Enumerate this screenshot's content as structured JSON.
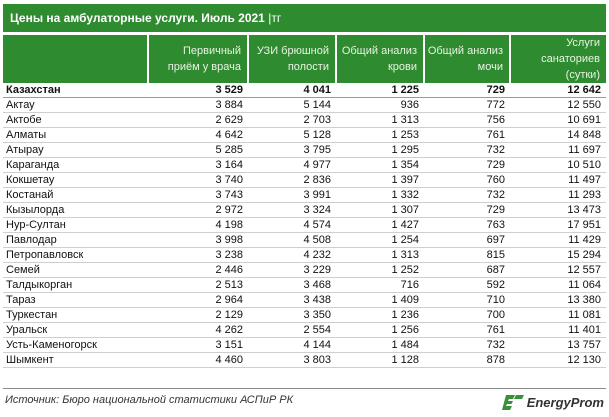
{
  "title": {
    "text": "Цены на амбулаторные услуги. Июль 2021",
    "unit": "|тг"
  },
  "table": {
    "columns": [
      "",
      "Первичный приём у врача",
      "УЗИ брюшной полости",
      "Общий анализ крови",
      "Общий анализ мочи",
      "Услуги санаториев (сутки)"
    ],
    "total": [
      "Казахстан",
      "3 529",
      "4 041",
      "1 225",
      "729",
      "12 642"
    ],
    "rows": [
      [
        "Актау",
        "3 884",
        "5 144",
        "936",
        "772",
        "12 550"
      ],
      [
        "Актобе",
        "2 629",
        "2 703",
        "1 313",
        "756",
        "10 691"
      ],
      [
        "Алматы",
        "4 642",
        "5 128",
        "1 253",
        "761",
        "14 848"
      ],
      [
        "Атырау",
        "5 285",
        "3 795",
        "1 295",
        "732",
        "11 697"
      ],
      [
        "Караганда",
        "3 164",
        "4 977",
        "1 354",
        "729",
        "10 510"
      ],
      [
        "Кокшетау",
        "3 740",
        "2 836",
        "1 397",
        "760",
        "11 497"
      ],
      [
        "Костанай",
        "3 743",
        "3 991",
        "1 332",
        "732",
        "11 293"
      ],
      [
        "Кызылорда",
        "2 972",
        "3 324",
        "1 307",
        "729",
        "13 473"
      ],
      [
        "Нур-Султан",
        "4 198",
        "4 574",
        "1 427",
        "763",
        "17 951"
      ],
      [
        "Павлодар",
        "3 998",
        "4 508",
        "1 254",
        "697",
        "11 429"
      ],
      [
        "Петропавловск",
        "3 238",
        "4 232",
        "1 313",
        "815",
        "15 294"
      ],
      [
        "Семей",
        "2 446",
        "3 229",
        "1 252",
        "687",
        "12 557"
      ],
      [
        "Талдыкорган",
        "2 513",
        "3 468",
        "716",
        "592",
        "11 064"
      ],
      [
        "Тараз",
        "2 964",
        "3 438",
        "1 409",
        "710",
        "13 380"
      ],
      [
        "Туркестан",
        "2 129",
        "3 350",
        "1 236",
        "700",
        "11 081"
      ],
      [
        "Уральск",
        "4 262",
        "2 554",
        "1 256",
        "761",
        "11 401"
      ],
      [
        "Усть-Каменогорск",
        "3 151",
        "4 144",
        "1 484",
        "732",
        "13 757"
      ],
      [
        "Шымкент",
        "4 460",
        "3 803",
        "1 128",
        "878",
        "12 130"
      ]
    ]
  },
  "footer": {
    "source": "Источник: Бюро национальной статистики АСПиР РК",
    "logo_text": "EnergyProm",
    "logo_icon": "energyprom-logo-icon"
  },
  "colors": {
    "header_green": "#2f8b2f",
    "header_text": "#e9f3e4",
    "logo_green": "#3a8f3a"
  }
}
